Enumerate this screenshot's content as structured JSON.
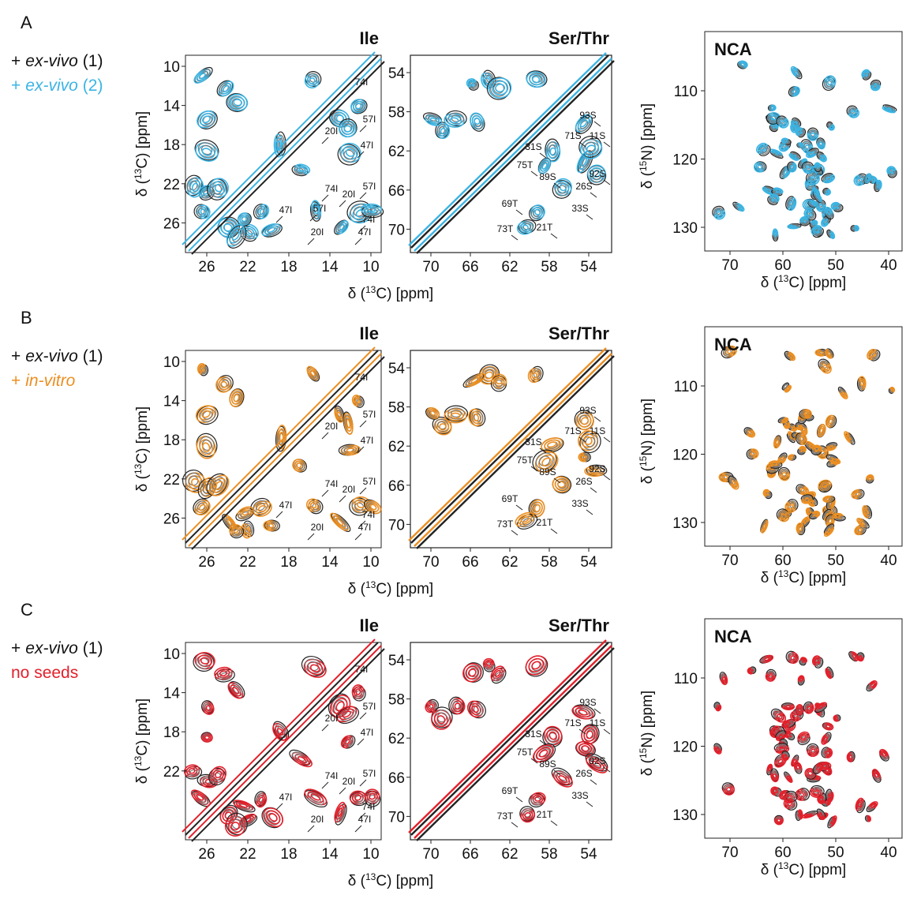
{
  "rows": [
    {
      "letter": "A",
      "legend": [
        {
          "color": "#111111",
          "parts": [
            {
              "text": "+"
            },
            {
              "text": "ex-vivo",
              "style": "italic"
            },
            {
              "text": "(1)"
            }
          ]
        },
        {
          "color": "#3bb4e3",
          "parts": [
            {
              "text": "+"
            },
            {
              "text": "ex-vivo",
              "style": "italic"
            },
            {
              "text": "(2)"
            }
          ]
        }
      ],
      "ile": {
        "title": "Ile",
        "xticks": [
          26,
          22,
          18,
          14,
          10
        ],
        "yticks": [
          10,
          14,
          18,
          22,
          26
        ],
        "peaks": [
          "74I",
          "57I",
          "20I",
          "47I",
          "57I",
          "74I",
          "20I",
          "57I",
          "74I",
          "47I",
          "20I",
          "47I"
        ]
      },
      "serthr": {
        "title": "Ser/Thr",
        "xticks": [
          70,
          66,
          62,
          58,
          54
        ],
        "yticks": [
          54,
          58,
          62,
          66,
          70
        ],
        "peaks": [
          "93S",
          "31S",
          "71S",
          "11S",
          "75T",
          "89S",
          "92S",
          "26S",
          "33S",
          "69T",
          "21T",
          "73T"
        ]
      },
      "shift_xlabel": {
        "pre": "δ (",
        "sup": "13",
        "post": "C) [ppm]"
      },
      "shift_ylabel": {
        "pre": "δ (",
        "sup": "13",
        "post": "C) [ppm]"
      },
      "nca": {
        "title": "NCA",
        "xticks": [
          70,
          60,
          50,
          40
        ],
        "yticks": [
          110,
          120,
          130
        ],
        "xlabel": {
          "pre": "δ (",
          "sup": "13",
          "post": "C) [ppm]"
        },
        "ylabel": {
          "pre": "δ (",
          "sup": "15",
          "post": "N) [ppm]"
        }
      }
    },
    {
      "letter": "B",
      "legend": [
        {
          "color": "#111111",
          "parts": [
            {
              "text": "+"
            },
            {
              "text": "ex-vivo",
              "style": "italic"
            },
            {
              "text": "(1)"
            }
          ]
        },
        {
          "color": "#ec8f22",
          "parts": [
            {
              "text": "+"
            },
            {
              "text": "in-vitro",
              "style": "italic"
            }
          ]
        }
      ],
      "ile": {
        "title": "Ile",
        "xticks": [
          26,
          22,
          18,
          14,
          10
        ],
        "yticks": [
          10,
          14,
          18,
          22,
          26
        ],
        "peaks": [
          "74I",
          "57I",
          "20I",
          "47I",
          "74I",
          "20I",
          "57I",
          "74I",
          "47I",
          "20I",
          "47I"
        ]
      },
      "serthr": {
        "title": "Ser/Thr",
        "xticks": [
          70,
          66,
          62,
          58,
          54
        ],
        "yticks": [
          54,
          58,
          62,
          66,
          70
        ],
        "peaks": [
          "93S",
          "31S",
          "71S",
          "11S",
          "75T",
          "89S",
          "92S",
          "26S",
          "33S",
          "69T",
          "21T",
          "73T"
        ]
      },
      "shift_xlabel": {
        "pre": "δ (",
        "sup": "13",
        "post": "C) [ppm]"
      },
      "shift_ylabel": {
        "pre": "δ (",
        "sup": "13",
        "post": "C) [ppm]"
      },
      "nca": {
        "title": "NCA",
        "xticks": [
          70,
          60,
          50,
          40
        ],
        "yticks": [
          110,
          120,
          130
        ],
        "xlabel": {
          "pre": "δ (",
          "sup": "13",
          "post": "C) [ppm]"
        },
        "ylabel": {
          "pre": "δ (",
          "sup": "15",
          "post": "N) [ppm]"
        }
      }
    },
    {
      "letter": "C",
      "legend": [
        {
          "color": "#111111",
          "parts": [
            {
              "text": "+"
            },
            {
              "text": "ex-vivo",
              "style": "italic"
            },
            {
              "text": "(1)"
            }
          ]
        },
        {
          "color": "#e3202b",
          "parts": [
            {
              "text": "no seeds"
            }
          ]
        }
      ],
      "ile": {
        "title": "Ile",
        "xticks": [
          26,
          22,
          18,
          14,
          10
        ],
        "yticks": [
          10,
          14,
          18,
          22
        ],
        "peaks": [
          "74I",
          "57I",
          "20I",
          "47I",
          "74I",
          "20I",
          "57I",
          "74I",
          "47I",
          "20I",
          "47I"
        ]
      },
      "serthr": {
        "title": "Ser/Thr",
        "xticks": [
          70,
          66,
          62,
          58,
          54
        ],
        "yticks": [
          54,
          58,
          62,
          66,
          70
        ],
        "peaks": [
          "93S",
          "31S",
          "71S",
          "11S",
          "75T",
          "89S",
          "92S",
          "26S",
          "33S",
          "69T",
          "21T",
          "73T"
        ]
      },
      "shift_xlabel": {
        "pre": "δ (",
        "sup": "13",
        "post": "C) [ppm]"
      },
      "shift_ylabel": {
        "pre": "δ (",
        "sup": "13",
        "post": "C) [ppm]"
      },
      "nca": {
        "title": "NCA",
        "xticks": [
          70,
          60,
          50,
          40
        ],
        "yticks": [
          110,
          120,
          130
        ],
        "xlabel": {
          "pre": "δ (",
          "sup": "13",
          "post": "C) [ppm]"
        },
        "ylabel": {
          "pre": "δ (",
          "sup": "15",
          "post": "N) [ppm]"
        }
      }
    }
  ]
}
